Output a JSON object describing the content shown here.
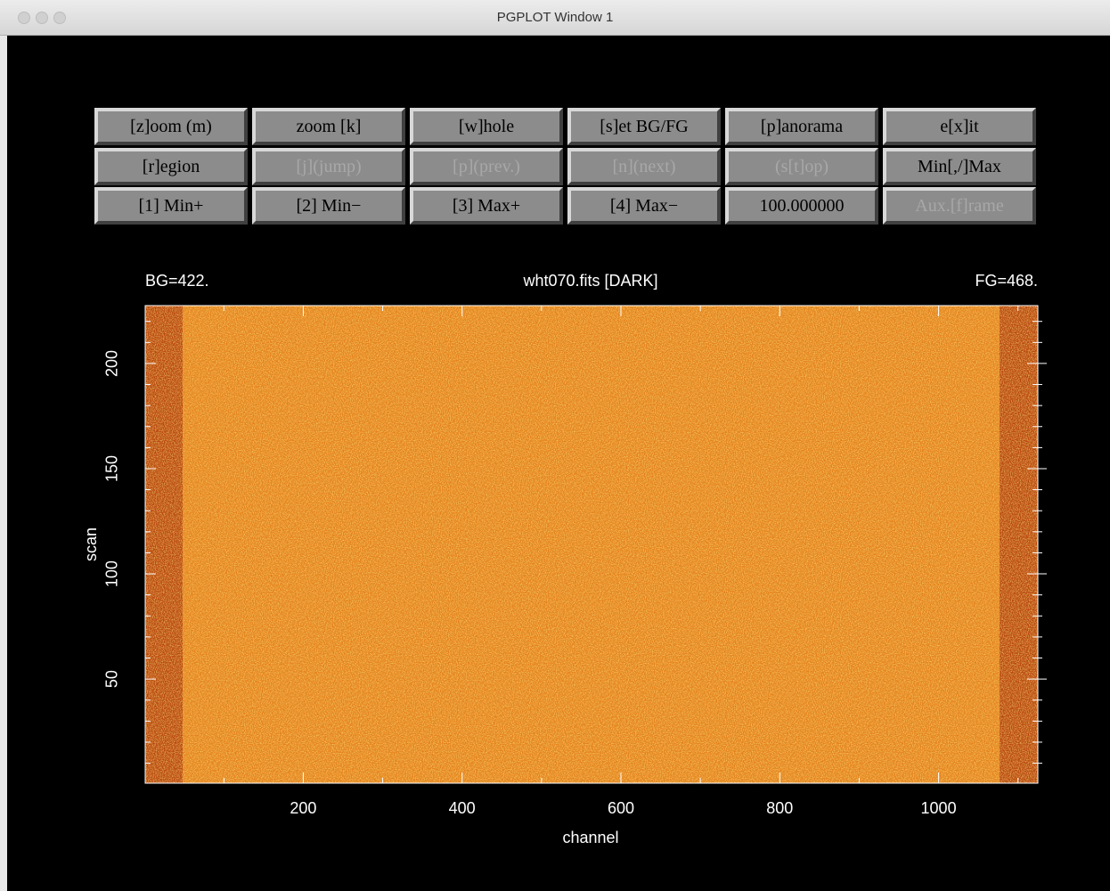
{
  "window": {
    "title": "PGPLOT Window 1"
  },
  "buttons": [
    [
      {
        "label": "[z]oom (m)",
        "enabled": true
      },
      {
        "label": "zoom [k]",
        "enabled": true
      },
      {
        "label": "[w]hole",
        "enabled": true
      },
      {
        "label": "[s]et BG/FG",
        "enabled": true
      },
      {
        "label": "[p]anorama",
        "enabled": true
      },
      {
        "label": "e[x]it",
        "enabled": true
      }
    ],
    [
      {
        "label": "[r]egion",
        "enabled": true
      },
      {
        "label": "[j](jump)",
        "enabled": false
      },
      {
        "label": "[p](prev.)",
        "enabled": false
      },
      {
        "label": "[n](next)",
        "enabled": false
      },
      {
        "label": "(s[t]op)",
        "enabled": false
      },
      {
        "label": "Min[,/]Max",
        "enabled": true
      }
    ],
    [
      {
        "label": "[1] Min+",
        "enabled": true
      },
      {
        "label": "[2] Min−",
        "enabled": true
      },
      {
        "label": "[3] Max+",
        "enabled": true
      },
      {
        "label": "[4] Max−",
        "enabled": true
      },
      {
        "label": "100.000000",
        "enabled": true
      },
      {
        "label": "Aux.[f]rame",
        "enabled": false
      }
    ]
  ],
  "plot": {
    "bg_label": "BG=422.",
    "title": "wht070.fits [DARK]",
    "fg_label": "FG=468.",
    "xlabel": "channel",
    "ylabel": "scan",
    "xlim": [
      1,
      1125
    ],
    "ylim": [
      0.5,
      227.5
    ],
    "xticks": [
      200,
      400,
      600,
      800,
      1000
    ],
    "yticks": [
      50,
      100,
      150,
      200
    ]
  }
}
